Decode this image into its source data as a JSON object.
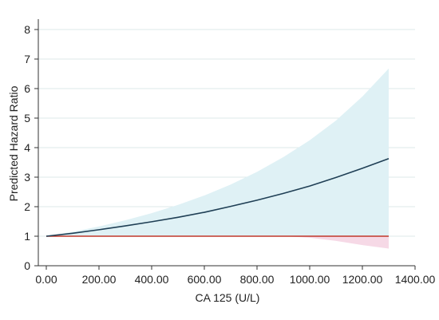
{
  "chart_data": {
    "type": "line",
    "title": "",
    "xlabel": "CA 125 (U/L)",
    "ylabel": "Predicted Hazard Ratio",
    "xlim": [
      0,
      1400
    ],
    "ylim": [
      0,
      8
    ],
    "x_ticks": [
      0,
      200,
      400,
      600,
      800,
      1000,
      1200,
      1400
    ],
    "x_tick_labels": [
      "0.00",
      "200.00",
      "400.00",
      "600.00",
      "800.00",
      "1000.00",
      "1200.00",
      "1400.00"
    ],
    "y_ticks": [
      0,
      1,
      2,
      3,
      4,
      5,
      6,
      7,
      8
    ],
    "y_tick_labels": [
      "0",
      "1",
      "2",
      "3",
      "4",
      "5",
      "6",
      "7",
      "8"
    ],
    "grid": "horizontal",
    "colors": {
      "hr_line": "#1f3f55",
      "ci_band": "#dff1f5",
      "reference_line": "#c0392b",
      "reference_band": "#f6d9e6",
      "grid": "#dde8ea",
      "axis": "#333333"
    },
    "series": [
      {
        "role": "hazard_ratio",
        "x": [
          0,
          100,
          200,
          300,
          400,
          500,
          600,
          700,
          800,
          900,
          1000,
          1100,
          1200,
          1300
        ],
        "y": [
          1.0,
          1.1,
          1.22,
          1.35,
          1.49,
          1.64,
          1.81,
          2.01,
          2.22,
          2.45,
          2.7,
          2.99,
          3.3,
          3.63
        ]
      },
      {
        "role": "ci_upper",
        "x": [
          0,
          100,
          200,
          300,
          400,
          500,
          600,
          700,
          800,
          900,
          1000,
          1100,
          1200,
          1300
        ],
        "y": [
          1.0,
          1.15,
          1.33,
          1.54,
          1.78,
          2.06,
          2.38,
          2.75,
          3.18,
          3.68,
          4.25,
          4.92,
          5.73,
          6.68
        ]
      },
      {
        "role": "ci_lower",
        "x": [
          0,
          100,
          200,
          300,
          400,
          500,
          600,
          700,
          800,
          900,
          1000,
          1100,
          1200,
          1300
        ],
        "y": [
          1.0,
          1.0,
          1.0,
          1.0,
          1.0,
          1.0,
          1.0,
          1.0,
          1.0,
          1.0,
          0.95,
          0.84,
          0.7,
          0.58
        ]
      },
      {
        "role": "reference",
        "x": [
          0,
          1300
        ],
        "y": [
          1.0,
          1.0
        ]
      }
    ]
  }
}
